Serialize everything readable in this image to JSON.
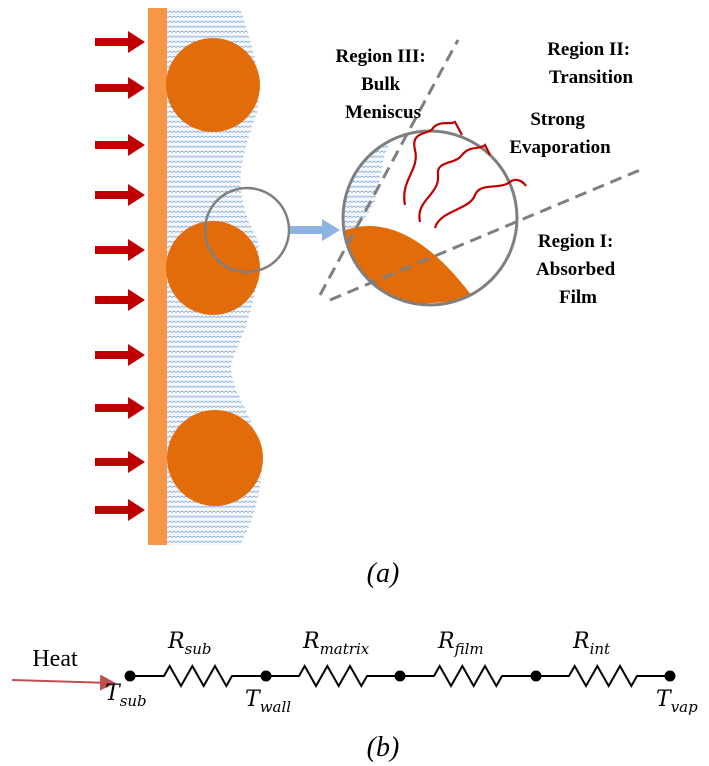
{
  "panel_a": {
    "caption": "(a)",
    "region_iii": [
      "Region III:",
      "Bulk",
      "Meniscus"
    ],
    "region_ii": [
      "Region II:",
      "Transition"
    ],
    "evaporation": [
      "Strong",
      "Evaporation"
    ],
    "region_i": [
      "Region I:",
      "Absorbed",
      "Film"
    ]
  },
  "panel_b": {
    "caption": "(b)",
    "input": "Heat",
    "resistors": [
      {
        "symbol": "R",
        "subscript": "sub"
      },
      {
        "symbol": "R",
        "subscript": "matrix"
      },
      {
        "symbol": "R",
        "subscript": "film"
      },
      {
        "symbol": "R",
        "subscript": "int"
      }
    ],
    "temperatures": [
      {
        "symbol": "T",
        "subscript": "sub"
      },
      {
        "symbol": "T",
        "subscript": "wall"
      },
      {
        "symbol": "T",
        "subscript": "vap"
      }
    ]
  }
}
